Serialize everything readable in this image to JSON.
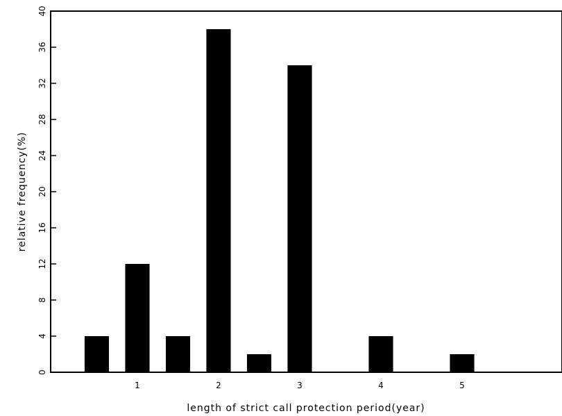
{
  "chart_data": {
    "type": "bar",
    "title": "",
    "xlabel": "length of strict call protection period(year)",
    "ylabel": "relative frequency(%)",
    "ylim": [
      0,
      40
    ],
    "yticks": [
      0,
      4,
      8,
      12,
      16,
      20,
      24,
      28,
      32,
      36,
      40
    ],
    "xlim": [
      0,
      6.5
    ],
    "xticks": [
      1,
      2,
      3,
      4,
      5
    ],
    "bar_width": 0.3,
    "bars": [
      {
        "x": 0.5,
        "value": 4
      },
      {
        "x": 1.0,
        "value": 12
      },
      {
        "x": 1.5,
        "value": 4
      },
      {
        "x": 2.0,
        "value": 38
      },
      {
        "x": 2.5,
        "value": 2
      },
      {
        "x": 3.0,
        "value": 34
      },
      {
        "x": 4.0,
        "value": 4
      },
      {
        "x": 5.0,
        "value": 2
      }
    ],
    "bar_color": "#000000",
    "grid": false,
    "legend": "none"
  }
}
